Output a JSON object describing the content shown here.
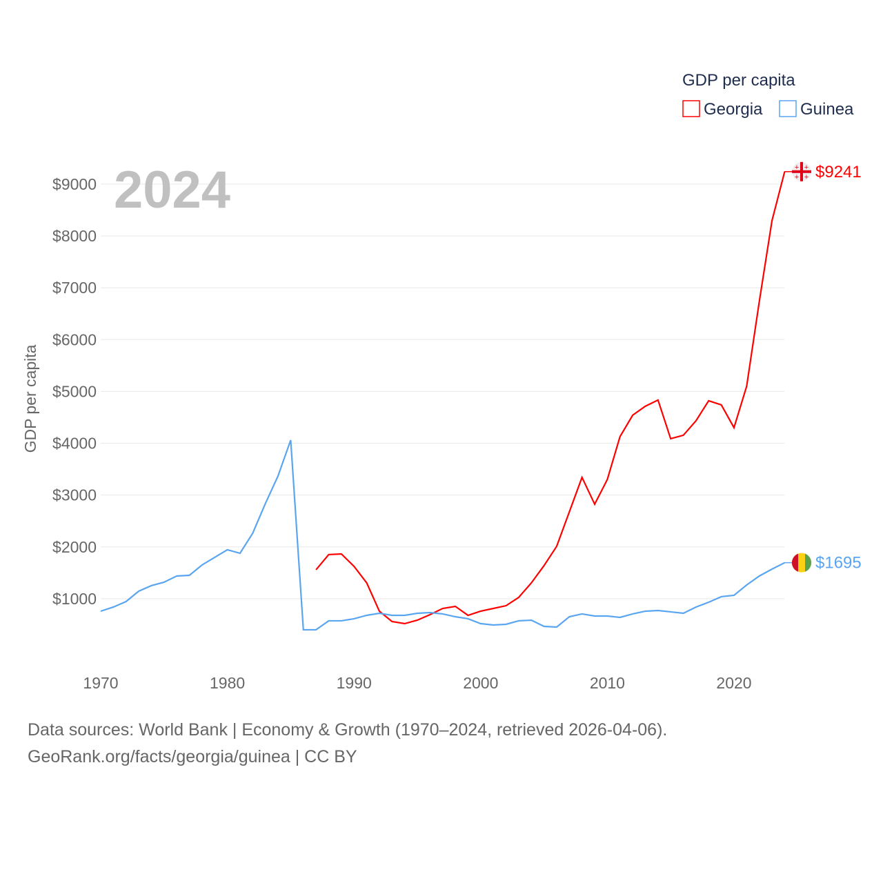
{
  "chart_data": {
    "type": "line",
    "title": "GDP per capita",
    "year_label": "2024",
    "ylabel": "GDP per capita",
    "xlabel": "",
    "xlim": [
      1970,
      2024
    ],
    "ylim": [
      0,
      9500
    ],
    "x_ticks": [
      1970,
      1980,
      1990,
      2000,
      2010,
      2020
    ],
    "x_tick_labels": [
      "1970",
      "1980",
      "1990",
      "2000",
      "2010",
      "2020"
    ],
    "y_ticks": [
      1000,
      2000,
      3000,
      4000,
      5000,
      6000,
      7000,
      8000,
      9000
    ],
    "y_tick_labels": [
      "$1000",
      "$2000",
      "$3000",
      "$4000",
      "$5000",
      "$6000",
      "$7000",
      "$8000",
      "$9000"
    ],
    "legend_position": "top-right",
    "series": [
      {
        "name": "Georgia",
        "color": "#ff0000",
        "end_label": "$9241",
        "flag": "georgia-flag",
        "x": [
          1987,
          1988,
          1989,
          1990,
          1991,
          1992,
          1993,
          1994,
          1995,
          1996,
          1997,
          1998,
          1999,
          2000,
          2001,
          2002,
          2003,
          2004,
          2005,
          2006,
          2007,
          2008,
          2009,
          2010,
          2011,
          2012,
          2013,
          2014,
          2015,
          2016,
          2017,
          2018,
          2019,
          2020,
          2021,
          2022,
          2023,
          2024
        ],
        "values": [
          1558,
          1851,
          1864,
          1624,
          1305,
          759,
          559,
          519,
          586,
          692,
          812,
          852,
          679,
          759,
          812,
          865,
          1025,
          1305,
          1638,
          2011,
          2676,
          3342,
          2823,
          3302,
          4128,
          4541,
          4714,
          4834,
          4088,
          4154,
          4434,
          4820,
          4740,
          4301,
          5100,
          6738,
          8296,
          9241
        ]
      },
      {
        "name": "Guinea",
        "color": "#5aa5f0",
        "end_label": "$1695",
        "flag": "guinea-flag",
        "x": [
          1970,
          1971,
          1972,
          1973,
          1974,
          1975,
          1976,
          1977,
          1978,
          1979,
          1980,
          1981,
          1982,
          1983,
          1984,
          1985,
          1986,
          1987,
          1988,
          1989,
          1990,
          1991,
          1992,
          1993,
          1994,
          1995,
          1996,
          1997,
          1998,
          1999,
          2000,
          2001,
          2002,
          2003,
          2004,
          2005,
          2006,
          2007,
          2008,
          2009,
          2010,
          2011,
          2012,
          2013,
          2014,
          2015,
          2016,
          2017,
          2018,
          2019,
          2020,
          2021,
          2022,
          2023,
          2024
        ],
        "values": [
          759,
          839,
          945,
          1145,
          1252,
          1318,
          1438,
          1451,
          1651,
          1798,
          1944,
          1877,
          2264,
          2836,
          3369,
          4061,
          400,
          400,
          573,
          573,
          613,
          679,
          719,
          679,
          679,
          719,
          732,
          706,
          652,
          613,
          519,
          493,
          506,
          573,
          586,
          466,
          453,
          652,
          706,
          666,
          666,
          639,
          706,
          759,
          772,
          746,
          719,
          839,
          932,
          1039,
          1065,
          1265,
          1438,
          1571,
          1695
        ]
      }
    ]
  },
  "footer": {
    "line1": "Data sources: World Bank | Economy & Growth (1970–2024, retrieved 2026-04-06).",
    "line2": "GeoRank.org/facts/georgia/guinea | CC BY"
  }
}
